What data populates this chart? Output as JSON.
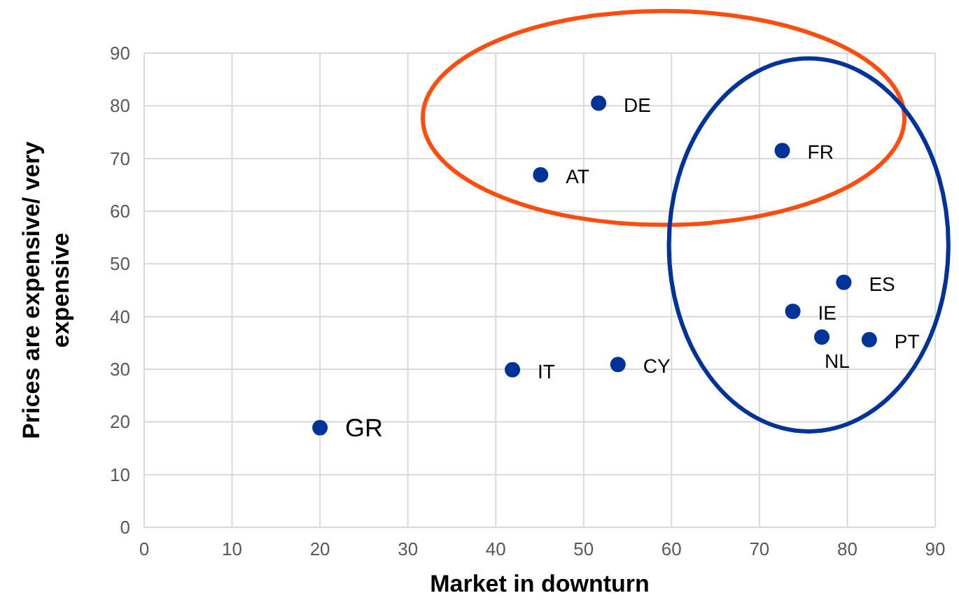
{
  "chart_data": {
    "type": "scatter",
    "xlabel": "Market in downturn",
    "ylabel": "Prices are expensive/ very expensive",
    "x": [
      51.7,
      45.1,
      72.6,
      79.6,
      73.8,
      77.1,
      82.5,
      53.9,
      41.9,
      20.0
    ],
    "series": [
      {
        "color": "#003399",
        "values": [
          80.5,
          66.9,
          71.5,
          46.5,
          41.0,
          36.1,
          35.6,
          30.9,
          29.9,
          18.9
        ]
      }
    ],
    "annotations": [
      {
        "text": "DE",
        "x": 51.7,
        "y": 80.5
      },
      {
        "text": "AT",
        "x": 45.1,
        "y": 66.9
      },
      {
        "text": "FR",
        "x": 72.6,
        "y": 71.5
      },
      {
        "text": "ES",
        "x": 79.6,
        "y": 46.5
      },
      {
        "text": "IE",
        "x": 73.8,
        "y": 41.0
      },
      {
        "text": "NL",
        "x": 77.1,
        "y": 36.1
      },
      {
        "text": "PT",
        "x": 82.5,
        "y": 35.6
      },
      {
        "text": "CY",
        "x": 53.9,
        "y": 30.9
      },
      {
        "text": "IT",
        "x": 41.9,
        "y": 29.9
      },
      {
        "text": "GR",
        "x": 20.0,
        "y": 18.9
      }
    ],
    "xlim": [
      0,
      90
    ],
    "xticks": [
      0,
      10,
      20,
      30,
      40,
      50,
      60,
      70,
      80,
      90
    ],
    "ylim": [
      0,
      90
    ],
    "yticks": [
      0,
      10,
      20,
      30,
      40,
      50,
      60,
      70,
      80,
      90
    ],
    "grid": true,
    "marker": "circle"
  }
}
